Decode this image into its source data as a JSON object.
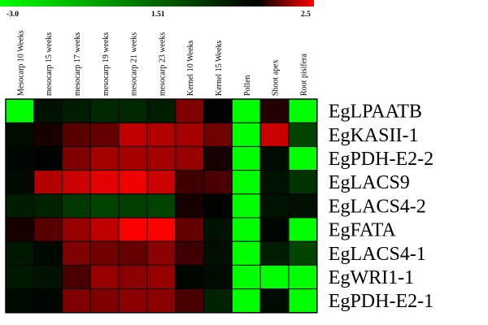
{
  "chart_data": {
    "type": "heatmap",
    "colorbar": {
      "min": -3.0,
      "mid": 1.51,
      "max": 2.5,
      "tick_labels": [
        "-3.0",
        "1.51",
        "2.5"
      ],
      "low_color": "#00ff00",
      "mid_color": "#000000",
      "high_color": "#ff0000"
    },
    "columns": [
      "Mesocarp 10 Weeks",
      "mesocarp 15 weeks",
      "mesocarp 17 weeks",
      "mesocarp 19 weeks",
      "mesocarp 21 weeks",
      "mesocarp 23 weeks",
      "Kernel 10 Weeks",
      "Kernel 15 Weeks",
      "Pollen",
      "Shoot apex",
      "Root pisifera"
    ],
    "rows": [
      "EgLPAATB",
      "EgKASII-1",
      "EgPDH-E2-2",
      "EgLACS9",
      "EgLACS4-2",
      "EgFATA",
      "EgLACS4-1",
      "EgWRI1-1",
      "EgPDH-E2-1"
    ],
    "values": [
      [
        -3.0,
        1.2,
        1.0,
        0.8,
        0.8,
        1.0,
        2.0,
        1.5,
        -3.0,
        1.65,
        -3.0
      ],
      [
        1.3,
        1.6,
        1.85,
        1.9,
        2.25,
        2.2,
        2.15,
        1.95,
        -3.0,
        2.3,
        0.3
      ],
      [
        1.4,
        1.5,
        2.0,
        2.15,
        2.15,
        2.15,
        2.1,
        1.6,
        -3.0,
        1.3,
        -3.0
      ],
      [
        1.35,
        2.2,
        2.3,
        2.4,
        2.45,
        2.3,
        1.75,
        1.8,
        -3.0,
        1.2,
        0.6
      ],
      [
        1.0,
        0.9,
        0.5,
        0.3,
        0.4,
        0.3,
        1.6,
        1.45,
        -3.0,
        1.2,
        1.25
      ],
      [
        1.6,
        1.85,
        2.1,
        2.25,
        2.5,
        2.5,
        1.9,
        1.2,
        -3.0,
        1.4,
        -3.0
      ],
      [
        1.1,
        1.35,
        2.0,
        1.95,
        1.9,
        2.05,
        1.75,
        1.25,
        -3.0,
        1.0,
        0.3
      ],
      [
        1.1,
        1.2,
        1.8,
        2.1,
        2.05,
        2.1,
        1.4,
        1.3,
        -3.0,
        -3.0,
        -3.0
      ],
      [
        1.35,
        1.4,
        2.0,
        2.0,
        2.05,
        2.05,
        1.8,
        0.9,
        -3.0,
        1.3,
        -3.0
      ]
    ]
  }
}
